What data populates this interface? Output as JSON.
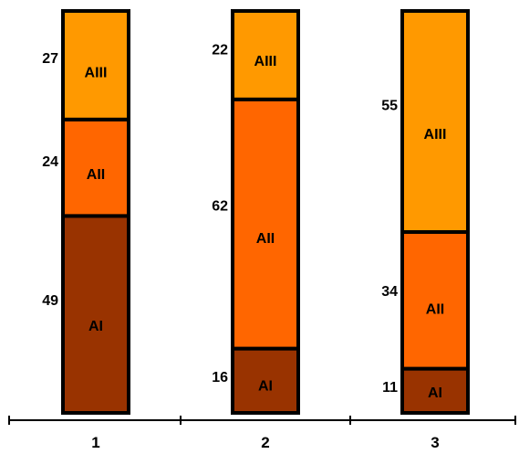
{
  "chart_data": {
    "type": "bar",
    "stacked": true,
    "normalized_to": 100,
    "categories": [
      "1",
      "2",
      "3"
    ],
    "series": [
      {
        "name": "AI",
        "values": [
          49,
          16,
          11
        ],
        "color": "#993300"
      },
      {
        "name": "AII",
        "values": [
          24,
          62,
          34
        ],
        "color": "#ff6600"
      },
      {
        "name": "AIII",
        "values": [
          27,
          22,
          55
        ],
        "color": "#ff9900"
      }
    ],
    "title": "",
    "xlabel": "",
    "ylabel": "",
    "ylim": [
      0,
      100
    ],
    "grid": false,
    "legend": "none",
    "segment_labels": "series name inside segment, value to the left"
  }
}
